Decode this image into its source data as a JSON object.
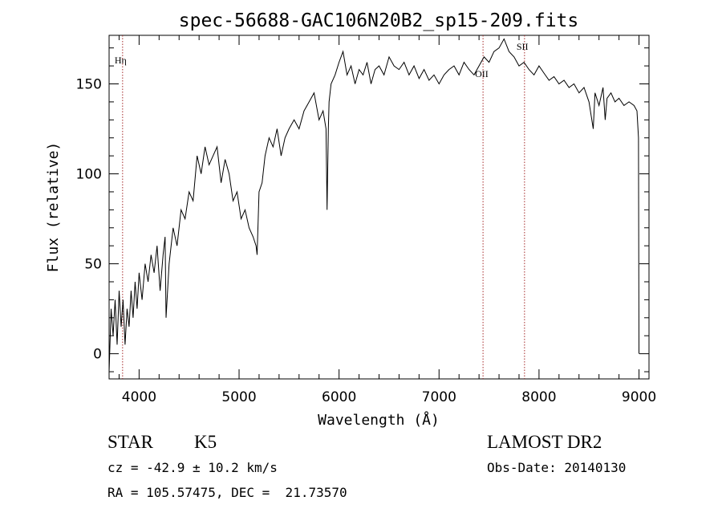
{
  "chart_data": {
    "type": "line",
    "title": "spec-56688-GAC106N20B2_sp15-209.fits",
    "xlabel": "Wavelength (Å)",
    "ylabel": "Flux (relative)",
    "xlim": [
      3700,
      9100
    ],
    "ylim": [
      -14,
      177
    ],
    "x_ticks": [
      4000,
      5000,
      6000,
      7000,
      8000,
      9000
    ],
    "y_ticks": [
      0,
      50,
      100,
      150
    ],
    "series": [
      {
        "x": [
          3700,
          3720,
          3740,
          3760,
          3780,
          3800,
          3820,
          3840,
          3860,
          3880,
          3900,
          3920,
          3940,
          3960,
          3980,
          4000,
          4030,
          4060,
          4090,
          4120,
          4150,
          4180,
          4210,
          4240,
          4260,
          4270,
          4300,
          4340,
          4380,
          4420,
          4460,
          4500,
          4540,
          4580,
          4620,
          4660,
          4700,
          4740,
          4780,
          4820,
          4860,
          4900,
          4940,
          4980,
          5020,
          5060,
          5100,
          5140,
          5170,
          5180,
          5200,
          5230,
          5260,
          5300,
          5340,
          5380,
          5420,
          5460,
          5500,
          5550,
          5600,
          5650,
          5700,
          5750,
          5800,
          5840,
          5870,
          5880,
          5893,
          5900,
          5920,
          5960,
          6000,
          6040,
          6080,
          6120,
          6160,
          6200,
          6240,
          6280,
          6320,
          6360,
          6400,
          6450,
          6500,
          6550,
          6600,
          6650,
          6700,
          6750,
          6800,
          6850,
          6900,
          6950,
          7000,
          7050,
          7100,
          7150,
          7200,
          7250,
          7300,
          7350,
          7400,
          7450,
          7500,
          7550,
          7600,
          7650,
          7700,
          7750,
          7800,
          7850,
          7900,
          7950,
          8000,
          8050,
          8100,
          8150,
          8200,
          8250,
          8300,
          8350,
          8400,
          8450,
          8500,
          8542,
          8560,
          8600,
          8640,
          8662,
          8680,
          8720,
          8760,
          8800,
          8850,
          8900,
          8950,
          8980,
          8995,
          9000
        ],
        "y": [
          -10,
          25,
          10,
          30,
          5,
          35,
          15,
          30,
          5,
          25,
          15,
          35,
          20,
          40,
          25,
          45,
          30,
          50,
          40,
          55,
          45,
          60,
          35,
          55,
          65,
          20,
          50,
          70,
          60,
          80,
          75,
          90,
          85,
          110,
          100,
          115,
          105,
          110,
          115,
          95,
          108,
          100,
          85,
          90,
          75,
          80,
          70,
          65,
          60,
          55,
          90,
          95,
          110,
          120,
          115,
          125,
          110,
          120,
          125,
          130,
          125,
          135,
          140,
          145,
          130,
          135,
          125,
          80,
          125,
          140,
          150,
          155,
          162,
          168,
          155,
          160,
          150,
          158,
          155,
          162,
          150,
          158,
          160,
          155,
          165,
          160,
          158,
          162,
          155,
          160,
          153,
          158,
          152,
          155,
          150,
          155,
          158,
          160,
          155,
          162,
          158,
          155,
          160,
          165,
          162,
          168,
          170,
          175,
          168,
          165,
          160,
          162,
          158,
          155,
          160,
          156,
          152,
          154,
          150,
          152,
          148,
          150,
          145,
          148,
          140,
          125,
          145,
          138,
          148,
          130,
          142,
          145,
          140,
          142,
          138,
          140,
          138,
          135,
          120,
          0
        ]
      }
    ],
    "lines": [
      {
        "label": "Hη",
        "x": 3835
      },
      {
        "label": "OII",
        "x": 7440
      },
      {
        "label": "SII",
        "x": 7855
      }
    ],
    "grid": false,
    "legend": "none"
  },
  "info": {
    "class": "STAR",
    "subclass": "K5",
    "survey": "LAMOST DR2",
    "cz": "cz = -42.9 ± 10.2 km/s",
    "obs_date": "Obs-Date: 20140130",
    "coords": "RA = 105.57475, DEC =  21.73570"
  }
}
